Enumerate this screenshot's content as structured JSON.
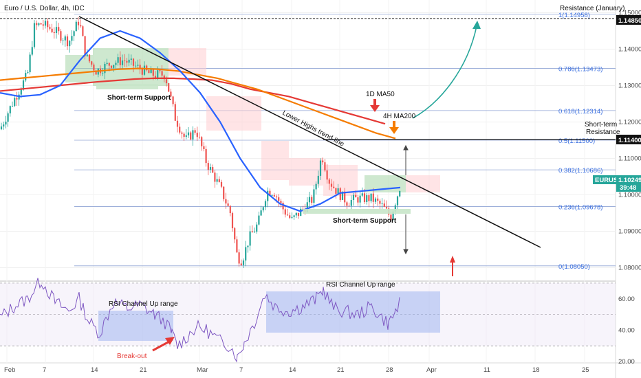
{
  "header": {
    "title": "Euro / U.S. Dollar, 4h, IDC"
  },
  "colors": {
    "up_candle": "#26a69a",
    "down_candle": "#ef5350",
    "ma50": "#2962ff",
    "ma200_1d": "#e53935",
    "ma200_4h": "#f57c00",
    "fib": "#90a4d4",
    "ichimoku_up": "#a5d6a7",
    "ichimoku_down": "#ffcdd2",
    "rsi_line": "#7e57c2",
    "rsi_box": "#7b96ef",
    "projection_arrow": "#26a69a",
    "trend_line": "#000000"
  },
  "chart_data": [
    {
      "type": "candlestick",
      "title": "Euro / U.S. Dollar, 4h, IDC",
      "symbol": "EURUSD",
      "price_axis": {
        "ylim": [
          1.0765,
          1.1535
        ],
        "ticks": [
          "1.15000",
          "1.14000",
          "1.13000",
          "1.12000",
          "1.11000",
          "1.10000",
          "1.09000",
          "1.08000"
        ]
      },
      "time_axis": {
        "ticks": [
          "Feb",
          "7",
          "14",
          "21",
          "Mar",
          "7",
          "14",
          "21",
          "28",
          "Apr",
          "11",
          "18",
          "25"
        ]
      },
      "current_price": {
        "label": "EURUSD",
        "value": "1.10249",
        "countdown": "39:48"
      },
      "resistance_price": "1.14850",
      "short_term_resistance_price": "1.11400",
      "fibonacci": [
        {
          "label": "1(1.14958)",
          "value": 1.14958
        },
        {
          "label": "0.786(1.13473)",
          "value": 1.13473
        },
        {
          "label": "0.618(1.12314)",
          "value": 1.12314
        },
        {
          "label": "0.5(1.11500)",
          "value": 1.115
        },
        {
          "label": "0.382(1.10686)",
          "value": 1.10686
        },
        {
          "label": "0.236(1.09678)",
          "value": 1.09678
        },
        {
          "label": "0(1.08050)",
          "value": 1.0805
        }
      ],
      "series": [
        {
          "name": "1D MA50",
          "values": [
            1.1285,
            1.129,
            1.1295,
            1.13,
            1.1305,
            1.131,
            1.1314,
            1.1318,
            1.132,
            1.132,
            1.1318,
            1.1315,
            1.1305,
            1.129,
            1.128,
            1.127,
            1.1255,
            1.124,
            1.1225,
            1.121,
            1.1195
          ]
        },
        {
          "name": "4H MA200",
          "values": [
            1.1315,
            1.132,
            1.1325,
            1.133,
            1.1335,
            1.134,
            1.1345,
            1.1347,
            1.1345,
            1.134,
            1.133,
            1.132,
            1.1305,
            1.129,
            1.127,
            1.125,
            1.123,
            1.121,
            1.119,
            1.117,
            1.1155
          ]
        },
        {
          "name": "4H MA50",
          "values": [
            1.128,
            1.127,
            1.1275,
            1.13,
            1.137,
            1.143,
            1.145,
            1.143,
            1.139,
            1.134,
            1.128,
            1.12,
            1.11,
            1.102,
            1.0975,
            1.0955,
            1.0975,
            1.1005,
            1.101,
            1.1015,
            1.102
          ]
        }
      ],
      "annotations": [
        "Resistance (January)",
        "Short-term Support",
        "Short-term Support",
        "Lower Highs trend-line",
        "1D MA50",
        "4H MA200",
        "Short-term",
        "Resistance"
      ]
    },
    {
      "type": "line",
      "title": "RSI",
      "ylim": [
        20,
        70
      ],
      "ticks": [
        "60.00",
        "40.00",
        "20.00"
      ],
      "annotations": [
        "RSI Channel Up range",
        "RSI Channel Up range",
        "Break-out"
      ]
    }
  ]
}
